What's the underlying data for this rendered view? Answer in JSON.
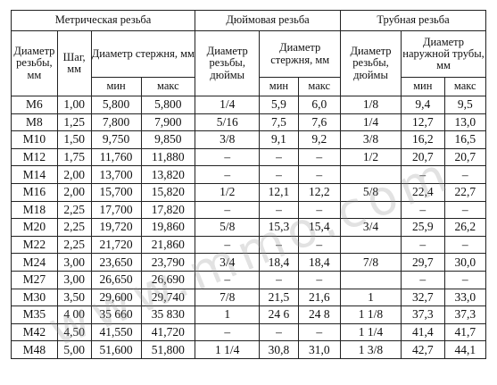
{
  "groups": {
    "metric": "Метрическая резьба",
    "inch": "Дюймовая резьба",
    "pipe": "Трубная резьба"
  },
  "subheaders": {
    "metric_diameter": "Диаметр резьбы, мм",
    "metric_pitch": "Шаг, мм",
    "metric_rod": "Диаметр стержня, мм",
    "inch_diameter": "Диаметр резьбы, дюймы",
    "inch_rod": "Диаметр стержня, мм",
    "pipe_diameter": "Диаметр резьбы, дюймы",
    "pipe_outer": "Диаметр наружной трубы, мм"
  },
  "minmax": {
    "min": "мин",
    "max": "макс"
  },
  "rows": [
    [
      "М6",
      "1,00",
      "5,800",
      "5,800",
      "1/4",
      "5,9",
      "6,0",
      "1/8",
      "9,4",
      "9,5"
    ],
    [
      "М8",
      "1,25",
      "7,800",
      "7,900",
      "5/16",
      "7,5",
      "7,6",
      "1/4",
      "12,7",
      "13,0"
    ],
    [
      "М10",
      "1,50",
      "9,750",
      "9,850",
      "3/8",
      "9,1",
      "9,2",
      "3/8",
      "16,2",
      "16,5"
    ],
    [
      "М12",
      "1,75",
      "11,760",
      "11,880",
      "–",
      "–",
      "–",
      "1/2",
      "20,7",
      "20,7"
    ],
    [
      "М14",
      "2,00",
      "13,700",
      "13,820",
      "–",
      "–",
      "–",
      "",
      "–",
      "–"
    ],
    [
      "М16",
      "2,00",
      "15,700",
      "15,820",
      "1/2",
      "12,1",
      "12,2",
      "5/8",
      "22,4",
      "22,7"
    ],
    [
      "М18",
      "2,25",
      "17,700",
      "17,820",
      "–",
      "–",
      "–",
      "",
      "–",
      "–"
    ],
    [
      "М20",
      "2,25",
      "19,720",
      "19,860",
      "5/8",
      "15,3",
      "15,4",
      "3/4",
      "25,9",
      "26,2"
    ],
    [
      "М22",
      "2,25",
      "21,720",
      "21,860",
      "–",
      "–",
      "–",
      "",
      "–",
      "–"
    ],
    [
      "М24",
      "3,00",
      "23,650",
      "23,790",
      "3/4",
      "18,4",
      "18,4",
      "7/8",
      "29,7",
      "30,0"
    ],
    [
      "М27",
      "3,00",
      "26,650",
      "26,690",
      "–",
      "–",
      "–",
      "",
      "–",
      "–"
    ],
    [
      "М30",
      "3,50",
      "29,600",
      "29,740",
      "7/8",
      "21,5",
      "21,6",
      "1",
      "32,7",
      "33,0"
    ],
    [
      "М35",
      "4 00",
      "35 660",
      "35 830",
      "1",
      "24 6",
      "24 8",
      "1 1/8",
      "37,3",
      "37,3"
    ],
    [
      "М42",
      "4,50",
      "41,550",
      "41,720",
      "–",
      "–",
      "–",
      "1 1/4",
      "41,4",
      "41,7"
    ],
    [
      "М48",
      "5,00",
      "51,600",
      "51,800",
      "1 1/4",
      "30,8",
      "31,0",
      "1 3/8",
      "42,7",
      "44,1"
    ]
  ]
}
